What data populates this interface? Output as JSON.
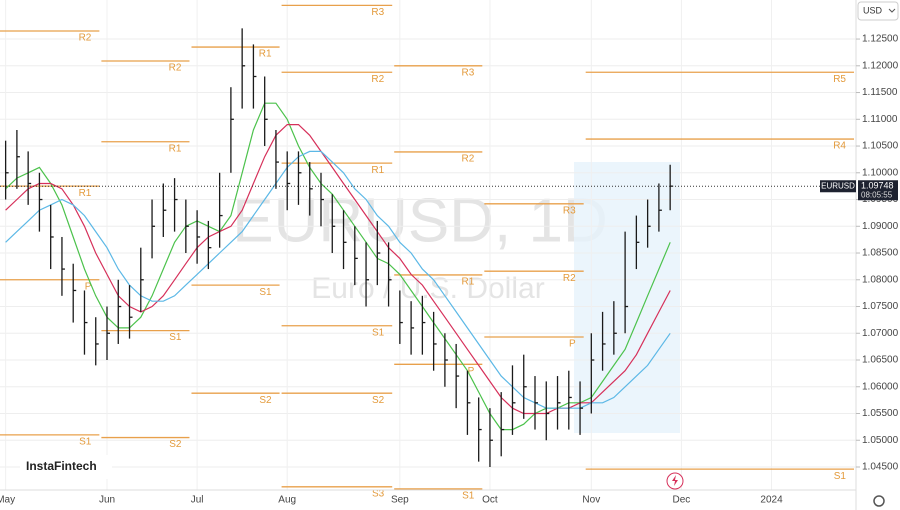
{
  "header": {
    "currency": "USD"
  },
  "watermark": {
    "symbol": "EURUSD, 1D",
    "description": "Euro / U.S. Dollar"
  },
  "brand": "InstaFintech",
  "chart_data": {
    "type": "ohlc",
    "categories": [
      "May",
      null,
      null,
      null,
      null,
      null,
      null,
      null,
      null,
      "Jun",
      null,
      null,
      null,
      null,
      null,
      null,
      null,
      "Jul",
      null,
      null,
      null,
      null,
      null,
      null,
      null,
      "Aug",
      null,
      null,
      null,
      null,
      null,
      null,
      null,
      null,
      null,
      "Sep",
      null,
      null,
      null,
      null,
      null,
      null,
      null,
      "Oct",
      null,
      null,
      null,
      null,
      null,
      null,
      null,
      null,
      "Nov",
      null,
      null,
      null,
      null,
      null,
      null,
      null,
      "Dec",
      null,
      null,
      null,
      null,
      null,
      null,
      null,
      "2024",
      null,
      null,
      null,
      null,
      null,
      null,
      null
    ],
    "high": [
      1.106,
      1.108,
      1.104,
      1.1,
      1.094,
      1.088,
      1.083,
      1.078,
      1.073,
      1.075,
      1.08,
      1.079,
      1.086,
      1.095,
      1.098,
      1.099,
      1.095,
      1.093,
      1.091,
      1.1,
      1.116,
      1.127,
      1.124,
      1.118,
      1.108,
      1.104,
      1.104,
      1.102,
      1.1,
      1.096,
      1.093,
      1.09,
      1.087,
      1.091,
      1.087,
      1.078,
      1.076,
      1.077,
      1.074,
      1.07,
      1.068,
      1.063,
      1.058,
      1.056,
      1.059,
      1.064,
      1.066,
      1.062,
      1.061,
      1.062,
      1.063,
      1.061,
      1.07,
      1.074,
      1.076,
      1.089,
      1.092,
      1.095,
      1.098,
      1.1015,
      null,
      null,
      null,
      null,
      null,
      null,
      null,
      null,
      null,
      null,
      null,
      null,
      null,
      null,
      null,
      null
    ],
    "low": [
      1.095,
      1.097,
      1.094,
      1.089,
      1.082,
      1.077,
      1.072,
      1.066,
      1.064,
      1.065,
      1.068,
      1.069,
      1.074,
      1.084,
      1.088,
      1.089,
      1.085,
      1.083,
      1.082,
      1.086,
      1.1,
      1.112,
      1.112,
      1.105,
      1.097,
      1.093,
      1.094,
      1.092,
      1.09,
      1.085,
      1.082,
      1.079,
      1.075,
      1.079,
      1.075,
      1.068,
      1.066,
      1.066,
      1.063,
      1.06,
      1.056,
      1.051,
      1.046,
      1.045,
      1.047,
      1.051,
      1.054,
      1.052,
      1.05,
      1.052,
      1.052,
      1.051,
      1.055,
      1.063,
      1.066,
      1.07,
      1.082,
      1.086,
      1.089,
      1.093,
      null,
      null,
      null,
      null,
      null,
      null,
      null,
      null,
      null,
      null,
      null,
      null,
      null,
      null,
      null,
      null
    ],
    "close": [
      1.1,
      1.103,
      1.098,
      1.095,
      1.088,
      1.082,
      1.078,
      1.072,
      1.068,
      1.07,
      1.075,
      1.073,
      1.08,
      1.09,
      1.093,
      1.095,
      1.09,
      1.088,
      1.086,
      1.092,
      1.11,
      1.12,
      1.118,
      1.11,
      1.102,
      1.098,
      1.1,
      1.097,
      1.095,
      1.09,
      1.087,
      1.084,
      1.08,
      1.085,
      1.08,
      1.072,
      1.071,
      1.072,
      1.068,
      1.065,
      1.062,
      1.057,
      1.052,
      1.05,
      1.052,
      1.057,
      1.06,
      1.057,
      1.055,
      1.057,
      1.058,
      1.056,
      1.065,
      1.068,
      1.07,
      1.075,
      1.087,
      1.09,
      1.093,
      1.0975,
      null,
      null,
      null,
      null,
      null,
      null,
      null,
      null,
      null,
      null,
      null,
      null,
      null,
      null,
      null,
      null
    ],
    "bar_color": "#1a1a1a",
    "series": [
      {
        "color": "#4cc24c",
        "values": [
          1.097,
          1.099,
          1.1,
          1.101,
          1.098,
          1.094,
          1.088,
          1.082,
          1.077,
          1.073,
          1.071,
          1.071,
          1.073,
          1.077,
          1.082,
          1.087,
          1.09,
          1.091,
          1.09,
          1.089,
          1.092,
          1.1,
          1.108,
          1.113,
          1.113,
          1.11,
          1.105,
          1.101,
          1.098,
          1.096,
          1.093,
          1.09,
          1.087,
          1.084,
          1.083,
          1.081,
          1.078,
          1.075,
          1.072,
          1.069,
          1.066,
          1.063,
          1.059,
          1.055,
          1.052,
          1.052,
          1.053,
          1.055,
          1.056,
          1.056,
          1.057,
          1.057,
          1.058,
          1.061,
          1.064,
          1.067,
          1.072,
          1.077,
          1.082,
          1.087,
          null,
          null,
          null,
          null,
          null,
          null,
          null,
          null,
          null,
          null,
          null,
          null,
          null,
          null,
          null,
          null
        ]
      },
      {
        "color": "#d6305a",
        "values": [
          1.093,
          1.095,
          1.097,
          1.098,
          1.098,
          1.097,
          1.094,
          1.09,
          1.085,
          1.081,
          1.077,
          1.075,
          1.074,
          1.075,
          1.077,
          1.08,
          1.083,
          1.086,
          1.088,
          1.089,
          1.09,
          1.093,
          1.098,
          1.103,
          1.107,
          1.109,
          1.109,
          1.107,
          1.104,
          1.101,
          1.098,
          1.095,
          1.092,
          1.089,
          1.086,
          1.084,
          1.081,
          1.079,
          1.076,
          1.073,
          1.07,
          1.067,
          1.064,
          1.061,
          1.058,
          1.056,
          1.055,
          1.055,
          1.055,
          1.056,
          1.056,
          1.057,
          1.057,
          1.059,
          1.061,
          1.063,
          1.066,
          1.07,
          1.074,
          1.078,
          null,
          null,
          null,
          null,
          null,
          null,
          null,
          null,
          null,
          null,
          null,
          null,
          null,
          null,
          null,
          null
        ]
      },
      {
        "color": "#5cb8e6",
        "values": [
          1.087,
          1.089,
          1.091,
          1.093,
          1.094,
          1.095,
          1.094,
          1.092,
          1.089,
          1.086,
          1.082,
          1.079,
          1.077,
          1.076,
          1.076,
          1.077,
          1.079,
          1.081,
          1.083,
          1.085,
          1.087,
          1.089,
          1.092,
          1.095,
          1.098,
          1.101,
          1.103,
          1.104,
          1.104,
          1.102,
          1.1,
          1.097,
          1.095,
          1.092,
          1.09,
          1.087,
          1.085,
          1.082,
          1.08,
          1.077,
          1.074,
          1.071,
          1.068,
          1.065,
          1.062,
          1.06,
          1.058,
          1.057,
          1.056,
          1.056,
          1.056,
          1.056,
          1.057,
          1.057,
          1.058,
          1.06,
          1.062,
          1.064,
          1.067,
          1.07,
          null,
          null,
          null,
          null,
          null,
          null,
          null,
          null,
          null,
          null,
          null,
          null,
          null,
          null,
          null,
          null
        ]
      }
    ],
    "pivot_color": "#e8a04b",
    "pivot_levels": [
      [
        {
          "label": "R2",
          "value": 1.1265
        },
        {
          "label": "R1",
          "value": 1.0975
        },
        {
          "label": "P",
          "value": 1.08
        },
        {
          "label": "S1",
          "value": 1.051
        }
      ],
      [
        {
          "label": "R2",
          "value": 1.1209
        },
        {
          "label": "R1",
          "value": 1.1058
        },
        {
          "label": "S1",
          "value": 1.0705
        },
        {
          "label": "S2",
          "value": 1.0505
        }
      ],
      [
        {
          "label": "R1",
          "value": 1.1235
        },
        {
          "label": "S1",
          "value": 1.079
        },
        {
          "label": "S2",
          "value": 1.0588
        }
      ],
      [
        {
          "label": "R3",
          "value": 1.1313
        },
        {
          "label": "R2",
          "value": 1.1188
        },
        {
          "label": "R1",
          "value": 1.1018
        },
        {
          "label": "S1",
          "value": 1.0714
        },
        {
          "label": "S2",
          "value": 1.0588
        },
        {
          "label": "S3",
          "value": 1.0413
        }
      ],
      [
        {
          "label": "R3",
          "value": 1.12
        },
        {
          "label": "R2",
          "value": 1.1039
        },
        {
          "label": "R1",
          "value": 1.0809
        },
        {
          "label": "P",
          "value": 1.0642
        },
        {
          "label": "S1",
          "value": 1.0409
        }
      ],
      [
        {
          "label": "R3",
          "value": 1.0942
        },
        {
          "label": "R2",
          "value": 1.0816
        },
        {
          "label": "P",
          "value": 1.0693
        }
      ],
      [
        {
          "label": "R5",
          "value": 1.1188
        },
        {
          "label": "R4",
          "value": 1.1063
        },
        {
          "label": "S1",
          "value": 1.0446
        }
      ]
    ],
    "last_price": {
      "symbol": "EURUSD",
      "value": 1.09748,
      "time": "08:05:55"
    },
    "ylim": [
      1.0407,
      1.1323
    ],
    "yticks": [
      {
        "value": 1.045,
        "label": "1.04500"
      },
      {
        "value": 1.05,
        "label": "1.05000"
      },
      {
        "value": 1.055,
        "label": "1.05500"
      },
      {
        "value": 1.06,
        "label": "1.06000"
      },
      {
        "value": 1.065,
        "label": "1.06500"
      },
      {
        "value": 1.07,
        "label": "1.07000"
      },
      {
        "value": 1.075,
        "label": "1.07500"
      },
      {
        "value": 1.08,
        "label": "1.08000"
      },
      {
        "value": 1.085,
        "label": "1.08500"
      },
      {
        "value": 1.09,
        "label": "1.09000"
      },
      {
        "value": 1.095,
        "label": "1.09500"
      },
      {
        "value": 1.1,
        "label": "1.10000"
      },
      {
        "value": 1.105,
        "label": "1.10500"
      },
      {
        "value": 1.11,
        "label": "1.11000"
      },
      {
        "value": 1.115,
        "label": "1.11500"
      },
      {
        "value": 1.12,
        "label": "1.12000"
      },
      {
        "value": 1.125,
        "label": "1.12500"
      }
    ]
  }
}
